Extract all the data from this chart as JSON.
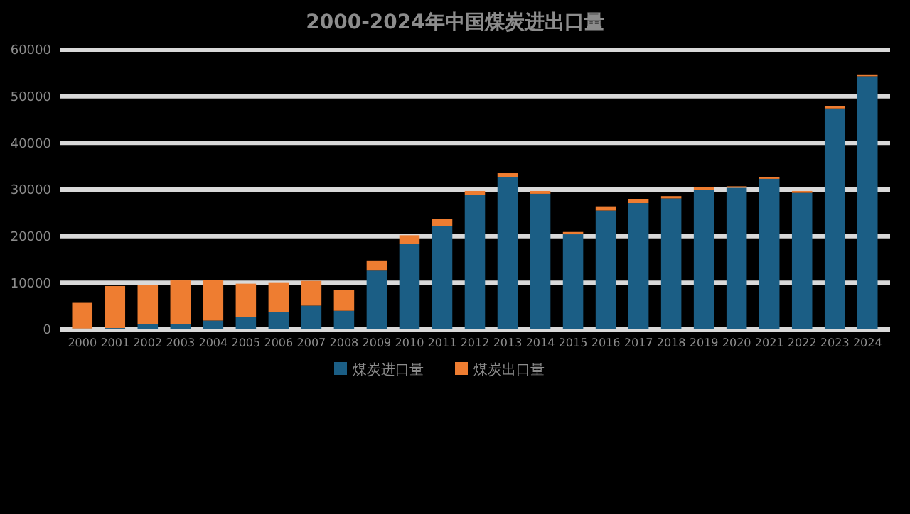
{
  "chart_data": {
    "type": "bar",
    "title": "2000-2024年中国煤炭进出口量",
    "stacked": true,
    "categories": [
      "2000",
      "2001",
      "2002",
      "2003",
      "2004",
      "2005",
      "2006",
      "2007",
      "2008",
      "2009",
      "2010",
      "2011",
      "2012",
      "2013",
      "2014",
      "2015",
      "2016",
      "2017",
      "2018",
      "2019",
      "2020",
      "2021",
      "2022",
      "2023",
      "2024"
    ],
    "series": [
      {
        "name": "煤炭进口量",
        "color": "#1b5e85",
        "values": [
          200,
          300,
          1100,
          1100,
          1900,
          2600,
          3800,
          5100,
          4000,
          12600,
          18300,
          22200,
          28800,
          32700,
          29100,
          20400,
          25500,
          27100,
          28100,
          30000,
          30400,
          32300,
          29300,
          47400,
          54300
        ]
      },
      {
        "name": "煤炭出口量",
        "color": "#ee7d31",
        "values": [
          5500,
          9000,
          8400,
          9400,
          8700,
          7200,
          6300,
          5300,
          4500,
          2200,
          1900,
          1500,
          900,
          800,
          600,
          500,
          900,
          800,
          500,
          600,
          300,
          300,
          400,
          500,
          400
        ]
      }
    ],
    "ylim": [
      0,
      60000
    ],
    "yticks": [
      0,
      10000,
      20000,
      30000,
      40000,
      50000,
      60000
    ],
    "grid": "y",
    "legend": "bottom"
  }
}
